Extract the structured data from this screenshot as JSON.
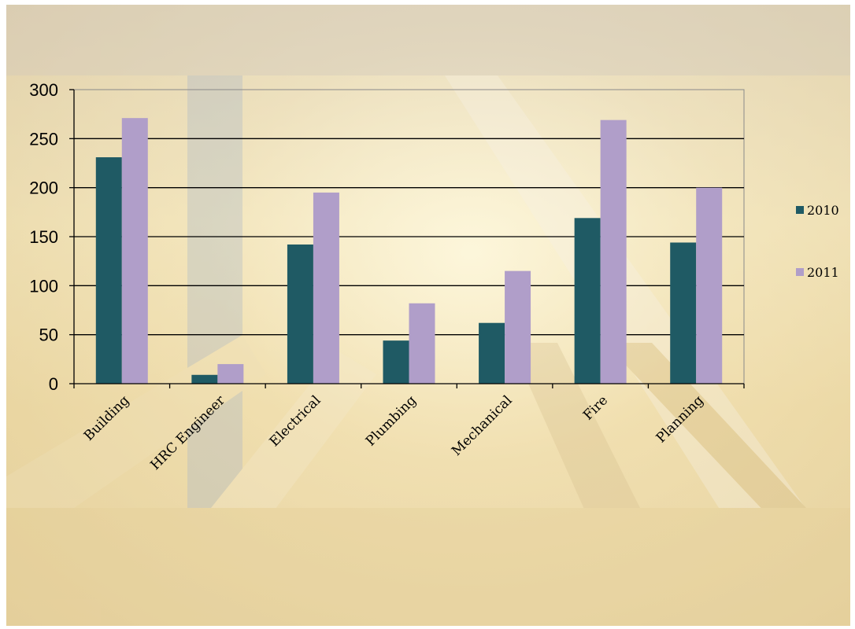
{
  "chart_data": {
    "type": "bar",
    "categories": [
      "Building",
      "HRC Engineer",
      "Electrical",
      "Plumbing",
      "Mechanical",
      "Fire",
      "Planning"
    ],
    "series": [
      {
        "name": "2010",
        "color": "#1f5a64",
        "values": [
          231,
          9,
          142,
          44,
          62,
          169,
          144
        ]
      },
      {
        "name": "2011",
        "color": "#b09ec9",
        "values": [
          271,
          20,
          195,
          82,
          115,
          269,
          200
        ]
      }
    ],
    "ylim": [
      0,
      300
    ],
    "yticks": [
      0,
      50,
      100,
      150,
      200,
      250,
      300
    ],
    "grid": true,
    "legend_position": "right",
    "title": "",
    "xlabel": "",
    "ylabel": ""
  }
}
